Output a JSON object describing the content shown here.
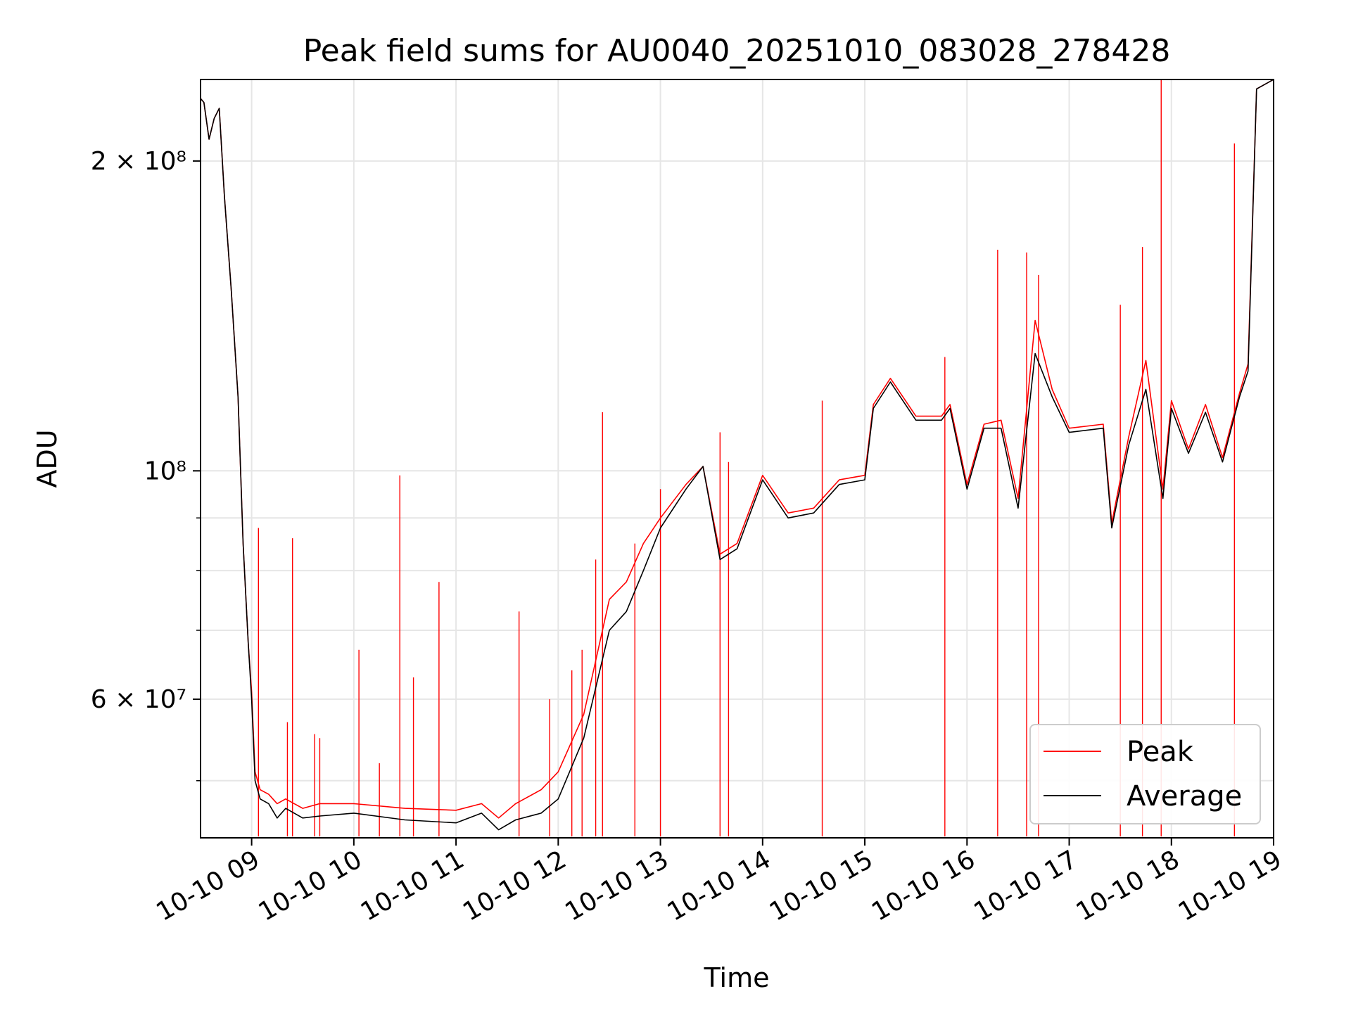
{
  "chart_data": {
    "type": "line",
    "title": "Peak field sums for AU0040_20251010_083028_278428",
    "xlabel": "Time",
    "ylabel": "ADU",
    "y_scale": "log",
    "ylim": [
      44000000,
      240000000
    ],
    "xlim": [
      "2025-10-10 08:30",
      "2025-10-10 19:00"
    ],
    "x_tick_labels": [
      "10-10 09",
      "10-10 10",
      "10-10 11",
      "10-10 12",
      "10-10 13",
      "10-10 14",
      "10-10 15",
      "10-10 16",
      "10-10 17",
      "10-10 18",
      "10-10 19"
    ],
    "x_tick_times": [
      "2025-10-10 09:00",
      "2025-10-10 10:00",
      "2025-10-10 11:00",
      "2025-10-10 12:00",
      "2025-10-10 13:00",
      "2025-10-10 14:00",
      "2025-10-10 15:00",
      "2025-10-10 16:00",
      "2025-10-10 17:00",
      "2025-10-10 18:00",
      "2025-10-10 19:00"
    ],
    "y_ticks_major": [
      {
        "value": 60000000,
        "label": "6 × 10⁷"
      },
      {
        "value": 100000000,
        "label": "10⁸"
      },
      {
        "value": 200000000,
        "label": "2 × 10⁸"
      }
    ],
    "y_ticks_minor": [
      50000000,
      70000000,
      80000000,
      90000000
    ],
    "grid": true,
    "legend_position": "lower-right",
    "series": [
      {
        "name": "Average",
        "color": "#000000",
        "x": [
          "2025-10-10 08:30",
          "2025-10-10 08:32",
          "2025-10-10 08:35",
          "2025-10-10 08:38",
          "2025-10-10 08:41",
          "2025-10-10 08:44",
          "2025-10-10 08:48",
          "2025-10-10 08:52",
          "2025-10-10 08:55",
          "2025-10-10 08:58",
          "2025-10-10 09:00",
          "2025-10-10 09:02",
          "2025-10-10 09:05",
          "2025-10-10 09:10",
          "2025-10-10 09:15",
          "2025-10-10 09:20",
          "2025-10-10 09:25",
          "2025-10-10 09:30",
          "2025-10-10 09:40",
          "2025-10-10 10:00",
          "2025-10-10 10:30",
          "2025-10-10 11:00",
          "2025-10-10 11:15",
          "2025-10-10 11:25",
          "2025-10-10 11:35",
          "2025-10-10 11:50",
          "2025-10-10 12:00",
          "2025-10-10 12:15",
          "2025-10-10 12:30",
          "2025-10-10 12:40",
          "2025-10-10 12:50",
          "2025-10-10 13:00",
          "2025-10-10 13:15",
          "2025-10-10 13:25",
          "2025-10-10 13:35",
          "2025-10-10 13:45",
          "2025-10-10 14:00",
          "2025-10-10 14:15",
          "2025-10-10 14:30",
          "2025-10-10 14:45",
          "2025-10-10 15:00",
          "2025-10-10 15:05",
          "2025-10-10 15:15",
          "2025-10-10 15:30",
          "2025-10-10 15:45",
          "2025-10-10 15:50",
          "2025-10-10 16:00",
          "2025-10-10 16:10",
          "2025-10-10 16:20",
          "2025-10-10 16:30",
          "2025-10-10 16:40",
          "2025-10-10 16:50",
          "2025-10-10 17:00",
          "2025-10-10 17:20",
          "2025-10-10 17:25",
          "2025-10-10 17:35",
          "2025-10-10 17:45",
          "2025-10-10 17:55",
          "2025-10-10 18:00",
          "2025-10-10 18:10",
          "2025-10-10 18:20",
          "2025-10-10 18:30",
          "2025-10-10 18:40",
          "2025-10-10 18:45",
          "2025-10-10 18:50",
          "2025-10-10 19:00"
        ],
        "values": [
          230000000,
          228000000,
          210000000,
          220000000,
          225000000,
          185000000,
          150000000,
          118000000,
          85000000,
          68000000,
          60000000,
          50000000,
          48000000,
          47500000,
          46000000,
          47000000,
          46500000,
          46000000,
          46200000,
          46500000,
          45800000,
          45500000,
          46500000,
          44800000,
          45800000,
          46500000,
          48000000,
          55000000,
          70000000,
          73000000,
          80000000,
          88000000,
          96000000,
          101000000,
          82000000,
          84000000,
          98000000,
          90000000,
          91000000,
          97000000,
          98000000,
          115000000,
          122000000,
          112000000,
          112000000,
          115000000,
          96000000,
          110000000,
          110000000,
          92000000,
          130000000,
          118000000,
          109000000,
          110000000,
          88000000,
          106000000,
          120000000,
          94000000,
          115000000,
          104000000,
          114000000,
          102000000,
          118000000,
          125000000,
          235000000,
          240000000
        ]
      },
      {
        "name": "Peak",
        "color": "#ff0000",
        "x": [
          "2025-10-10 08:30",
          "2025-10-10 08:32",
          "2025-10-10 08:35",
          "2025-10-10 08:38",
          "2025-10-10 08:41",
          "2025-10-10 08:44",
          "2025-10-10 08:48",
          "2025-10-10 08:52",
          "2025-10-10 08:55",
          "2025-10-10 08:58",
          "2025-10-10 09:00",
          "2025-10-10 09:02",
          "2025-10-10 09:05",
          "2025-10-10 09:10",
          "2025-10-10 09:15",
          "2025-10-10 09:20",
          "2025-10-10 09:25",
          "2025-10-10 09:30",
          "2025-10-10 09:40",
          "2025-10-10 10:00",
          "2025-10-10 10:30",
          "2025-10-10 11:00",
          "2025-10-10 11:15",
          "2025-10-10 11:25",
          "2025-10-10 11:35",
          "2025-10-10 11:50",
          "2025-10-10 12:00",
          "2025-10-10 12:15",
          "2025-10-10 12:30",
          "2025-10-10 12:40",
          "2025-10-10 12:50",
          "2025-10-10 13:00",
          "2025-10-10 13:15",
          "2025-10-10 13:25",
          "2025-10-10 13:35",
          "2025-10-10 13:45",
          "2025-10-10 14:00",
          "2025-10-10 14:15",
          "2025-10-10 14:30",
          "2025-10-10 14:45",
          "2025-10-10 15:00",
          "2025-10-10 15:05",
          "2025-10-10 15:15",
          "2025-10-10 15:30",
          "2025-10-10 15:45",
          "2025-10-10 15:50",
          "2025-10-10 16:00",
          "2025-10-10 16:10",
          "2025-10-10 16:20",
          "2025-10-10 16:30",
          "2025-10-10 16:40",
          "2025-10-10 16:50",
          "2025-10-10 17:00",
          "2025-10-10 17:20",
          "2025-10-10 17:25",
          "2025-10-10 17:35",
          "2025-10-10 17:45",
          "2025-10-10 17:55",
          "2025-10-10 18:00",
          "2025-10-10 18:10",
          "2025-10-10 18:20",
          "2025-10-10 18:30",
          "2025-10-10 18:40",
          "2025-10-10 18:45",
          "2025-10-10 18:50",
          "2025-10-10 19:00"
        ],
        "values": [
          230000000,
          228000000,
          210000000,
          220000000,
          225000000,
          185000000,
          150000000,
          118000000,
          85000000,
          68000000,
          61000000,
          51000000,
          49000000,
          48500000,
          47500000,
          48000000,
          47500000,
          47000000,
          47500000,
          47500000,
          47000000,
          46800000,
          47500000,
          46000000,
          47500000,
          49000000,
          51000000,
          58000000,
          75000000,
          78000000,
          85000000,
          90000000,
          97000000,
          101000000,
          83000000,
          85000000,
          99000000,
          91000000,
          92000000,
          98000000,
          99000000,
          116000000,
          123000000,
          113000000,
          113000000,
          116000000,
          97000000,
          111000000,
          112000000,
          94000000,
          140000000,
          120000000,
          110000000,
          111000000,
          89000000,
          108000000,
          128000000,
          96000000,
          117000000,
          105000000,
          116000000,
          103000000,
          119000000,
          127000000,
          235000000,
          240000000
        ],
        "spikes": [
          {
            "x": "2025-10-10 09:04",
            "y": 88000000
          },
          {
            "x": "2025-10-10 09:21",
            "y": 57000000
          },
          {
            "x": "2025-10-10 09:24",
            "y": 86000000
          },
          {
            "x": "2025-10-10 09:37",
            "y": 55500000
          },
          {
            "x": "2025-10-10 09:40",
            "y": 55000000
          },
          {
            "x": "2025-10-10 10:03",
            "y": 67000000
          },
          {
            "x": "2025-10-10 10:15",
            "y": 52000000
          },
          {
            "x": "2025-10-10 10:27",
            "y": 99000000
          },
          {
            "x": "2025-10-10 10:35",
            "y": 63000000
          },
          {
            "x": "2025-10-10 10:50",
            "y": 78000000
          },
          {
            "x": "2025-10-10 11:37",
            "y": 73000000
          },
          {
            "x": "2025-10-10 11:55",
            "y": 60000000
          },
          {
            "x": "2025-10-10 12:08",
            "y": 64000000
          },
          {
            "x": "2025-10-10 12:14",
            "y": 67000000
          },
          {
            "x": "2025-10-10 12:22",
            "y": 82000000
          },
          {
            "x": "2025-10-10 12:26",
            "y": 114000000
          },
          {
            "x": "2025-10-10 12:45",
            "y": 85000000
          },
          {
            "x": "2025-10-10 13:00",
            "y": 96000000
          },
          {
            "x": "2025-10-10 13:35",
            "y": 109000000
          },
          {
            "x": "2025-10-10 13:40",
            "y": 102000000
          },
          {
            "x": "2025-10-10 14:35",
            "y": 117000000
          },
          {
            "x": "2025-10-10 15:47",
            "y": 129000000
          },
          {
            "x": "2025-10-10 16:18",
            "y": 164000000
          },
          {
            "x": "2025-10-10 16:35",
            "y": 163000000
          },
          {
            "x": "2025-10-10 16:42",
            "y": 155000000
          },
          {
            "x": "2025-10-10 17:30",
            "y": 145000000
          },
          {
            "x": "2025-10-10 17:43",
            "y": 165000000
          },
          {
            "x": "2025-10-10 17:54",
            "y": 240000000
          },
          {
            "x": "2025-10-10 18:37",
            "y": 208000000
          }
        ]
      }
    ]
  }
}
